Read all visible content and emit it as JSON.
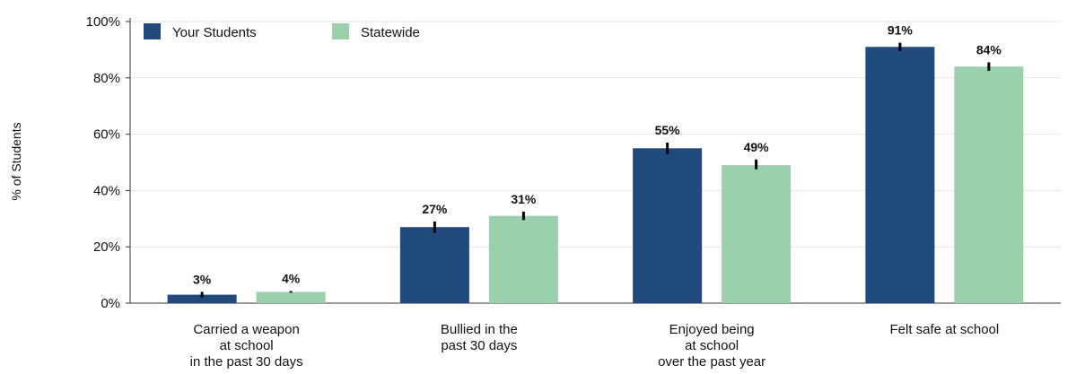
{
  "chart_data": {
    "type": "bar",
    "ylabel": "% of Students",
    "ylim": [
      0,
      100
    ],
    "yticks": [
      0,
      20,
      40,
      60,
      80,
      100
    ],
    "ytick_labels": [
      "0%",
      "20%",
      "40%",
      "60%",
      "80%",
      "100%"
    ],
    "grid": true,
    "legend_position": "top-left",
    "categories": [
      [
        "Carried a weapon",
        "at school",
        "in the past 30 days"
      ],
      [
        "Bullied in the",
        "past 30 days"
      ],
      [
        "Enjoyed being",
        "at school",
        "over the past year"
      ],
      [
        "Felt safe at school"
      ]
    ],
    "series": [
      {
        "name": "Your Students",
        "color": "#20497c",
        "values": [
          3,
          27,
          55,
          91
        ],
        "labels": [
          "3%",
          "27%",
          "55%",
          "91%"
        ],
        "error": [
          [
            2,
            4
          ],
          [
            25,
            29
          ],
          [
            53,
            57
          ],
          [
            89.5,
            92.5
          ]
        ]
      },
      {
        "name": "Statewide",
        "color": "#9bd0ac",
        "values": [
          4,
          31,
          49,
          84
        ],
        "labels": [
          "4%",
          "31%",
          "49%",
          "84%"
        ],
        "error": [
          [
            3.7,
            4.3
          ],
          [
            29.5,
            32.5
          ],
          [
            47.5,
            51
          ],
          [
            82.5,
            85.5
          ]
        ]
      }
    ]
  }
}
